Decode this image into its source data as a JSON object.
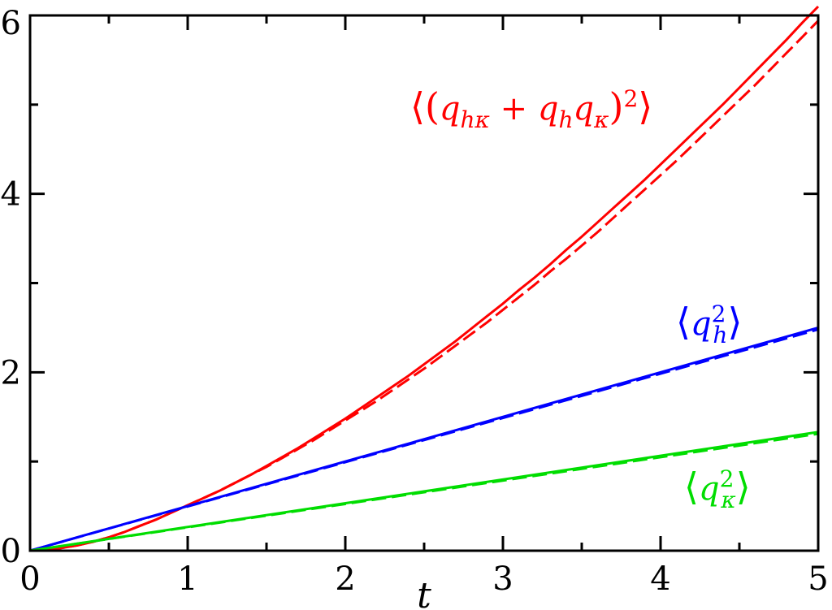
{
  "chart_data": {
    "type": "line",
    "title": "",
    "xlabel": "t",
    "ylabel": "",
    "xlim": [
      0,
      5
    ],
    "ylim": [
      0,
      6
    ],
    "x_major_ticks": [
      0,
      1,
      2,
      3,
      4,
      5
    ],
    "x_tick_labels": [
      "0",
      "1",
      "2",
      "3",
      "4",
      "5"
    ],
    "y_major_ticks": [
      0,
      2,
      4,
      6
    ],
    "y_tick_labels": [
      "0",
      "2",
      "4",
      "6"
    ],
    "y_minor_ticks": [
      1,
      3,
      5
    ],
    "x_minor_ticks": [
      0.5,
      1.5,
      2.5,
      3.5,
      4.5
    ],
    "grid": false,
    "series": [
      {
        "name": "⟨(q_hκ + q_h q_κ)²⟩",
        "color": "#ff0000",
        "style": "solid",
        "x": [
          0,
          0.1,
          0.2,
          0.3,
          0.4,
          0.5,
          0.6,
          0.7,
          0.8,
          0.9,
          1.0,
          1.1,
          1.2,
          1.3,
          1.4,
          1.5,
          1.6,
          1.7,
          1.8,
          1.9,
          2.0,
          2.1,
          2.2,
          2.3,
          2.4,
          2.5,
          2.6,
          2.7,
          2.8,
          2.9,
          3.0,
          3.1,
          3.2,
          3.3,
          3.4,
          3.5,
          3.6,
          3.7,
          3.8,
          3.9,
          4.0,
          4.1,
          4.2,
          4.3,
          4.4,
          4.5,
          4.6,
          4.7,
          4.8,
          4.9,
          5.0
        ],
        "y": [
          0,
          0.01,
          0.03,
          0.06,
          0.1,
          0.15,
          0.21,
          0.28,
          0.35,
          0.43,
          0.51,
          0.59,
          0.67,
          0.76,
          0.85,
          0.95,
          1.05,
          1.15,
          1.26,
          1.37,
          1.48,
          1.6,
          1.72,
          1.84,
          1.96,
          2.09,
          2.22,
          2.35,
          2.49,
          2.63,
          2.77,
          2.92,
          3.06,
          3.21,
          3.37,
          3.52,
          3.68,
          3.84,
          4.0,
          4.16,
          4.33,
          4.5,
          4.67,
          4.84,
          5.01,
          5.19,
          5.37,
          5.55,
          5.73,
          5.92,
          6.1
        ]
      },
      {
        "name": "",
        "color": "#ff0000",
        "style": "dashed",
        "x": [
          0,
          0.1,
          0.2,
          0.3,
          0.4,
          0.5,
          0.6,
          0.7,
          0.8,
          0.9,
          1.0,
          1.1,
          1.2,
          1.3,
          1.4,
          1.5,
          1.6,
          1.7,
          1.8,
          1.9,
          2.0,
          2.1,
          2.2,
          2.3,
          2.4,
          2.5,
          2.6,
          2.7,
          2.8,
          2.9,
          3.0,
          3.1,
          3.2,
          3.3,
          3.4,
          3.5,
          3.6,
          3.7,
          3.8,
          3.9,
          4.0,
          4.1,
          4.2,
          4.3,
          4.4,
          4.5,
          4.6,
          4.7,
          4.8,
          4.9,
          5.0
        ],
        "y": [
          0,
          0.01,
          0.03,
          0.06,
          0.1,
          0.15,
          0.21,
          0.28,
          0.35,
          0.43,
          0.51,
          0.59,
          0.67,
          0.76,
          0.85,
          0.94,
          1.04,
          1.14,
          1.24,
          1.35,
          1.46,
          1.57,
          1.68,
          1.8,
          1.92,
          2.04,
          2.17,
          2.3,
          2.43,
          2.56,
          2.7,
          2.84,
          2.98,
          3.13,
          3.27,
          3.42,
          3.57,
          3.73,
          3.89,
          4.05,
          4.21,
          4.37,
          4.54,
          4.71,
          4.88,
          5.05,
          5.22,
          5.4,
          5.58,
          5.76,
          5.94
        ]
      },
      {
        "name": "⟨q_h²⟩",
        "color": "#0000ff",
        "style": "solid",
        "x": [
          0,
          5
        ],
        "y": [
          0,
          2.5
        ]
      },
      {
        "name": "",
        "color": "#0000ff",
        "style": "dashed",
        "x": [
          0,
          5
        ],
        "y": [
          0,
          2.48
        ]
      },
      {
        "name": "⟨q_κ²⟩",
        "color": "#00dd00",
        "style": "solid",
        "x": [
          0,
          5
        ],
        "y": [
          0,
          1.33
        ]
      },
      {
        "name": "",
        "color": "#00dd00",
        "style": "dashed",
        "x": [
          0,
          5
        ],
        "y": [
          0,
          1.31
        ]
      }
    ],
    "annotations": [
      {
        "key": "red",
        "text": "⟨(q_hκ + q_h q_κ)²⟩",
        "color": "#ff0000"
      },
      {
        "key": "blue",
        "text": "⟨q_h²⟩",
        "color": "#0000ff"
      },
      {
        "key": "green",
        "text": "⟨q_κ²⟩",
        "color": "#00dd00"
      }
    ]
  }
}
